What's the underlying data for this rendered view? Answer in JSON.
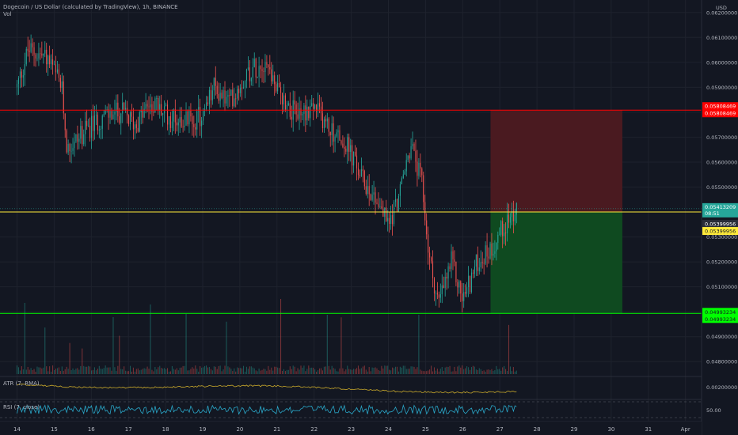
{
  "header": {
    "title": "Dogecoin / US Dollar (calculated by TradingView), 1h, BINANCE",
    "volume_label": "Vol"
  },
  "price_axis": {
    "currency": "USD",
    "ticks": [
      "0.06200000",
      "0.06100000",
      "0.06000000",
      "0.05900000",
      "0.05700000",
      "0.05600000",
      "0.05500000",
      "0.05300000",
      "0.05200000",
      "0.05100000",
      "0.04900000",
      "0.04800000"
    ]
  },
  "x_axis": {
    "ticks": [
      "14",
      "15",
      "16",
      "17",
      "18",
      "19",
      "20",
      "21",
      "22",
      "23",
      "24",
      "25",
      "26",
      "27",
      "28",
      "29",
      "30",
      "31",
      "Apr"
    ]
  },
  "levels": {
    "stop": {
      "label": "0.05808469",
      "label2": "0.05808469",
      "color": "#ff0000"
    },
    "current": {
      "label": "0.05413209",
      "countdown": "08:51",
      "color": "#26a69a"
    },
    "entry": {
      "label": "0.05399956",
      "label2": "0.05399956",
      "color": "#ffeb3b"
    },
    "target": {
      "label": "0.04993234",
      "label2": "0.04993234",
      "color": "#00ff00"
    }
  },
  "indicators": {
    "atr": {
      "label": "ATR (7, RMA)",
      "axis_label": "0.00200000",
      "color": "#c9a92b"
    },
    "rsi": {
      "label": "RSI (7, close)",
      "axis_label": "50.00",
      "color": "#2aa7c8"
    }
  },
  "colors": {
    "background": "#131722",
    "bull": "#26a69a",
    "bear": "#ef5350",
    "risk_zone": "#4a1a20",
    "reward_zone": "#0f4a20"
  },
  "chart_data": {
    "type": "candlestick",
    "symbol": "DOGE/USD",
    "interval": "1h",
    "y_unit": "USD",
    "ylim": [
      0.0475,
      0.0625
    ],
    "x_range": [
      "14",
      "Apr"
    ],
    "anchors": [
      {
        "t": 0.0,
        "p": 0.059
      },
      {
        "t": 0.3,
        "p": 0.0605
      },
      {
        "t": 0.8,
        "p": 0.0602
      },
      {
        "t": 1.2,
        "p": 0.059
      },
      {
        "t": 1.35,
        "p": 0.0565
      },
      {
        "t": 1.8,
        "p": 0.0572
      },
      {
        "t": 2.3,
        "p": 0.0578
      },
      {
        "t": 2.8,
        "p": 0.058
      },
      {
        "t": 3.2,
        "p": 0.0575
      },
      {
        "t": 3.6,
        "p": 0.0584
      },
      {
        "t": 4.1,
        "p": 0.0578
      },
      {
        "t": 4.6,
        "p": 0.0577
      },
      {
        "t": 5.0,
        "p": 0.0578
      },
      {
        "t": 5.3,
        "p": 0.059
      },
      {
        "t": 5.7,
        "p": 0.0584
      },
      {
        "t": 6.2,
        "p": 0.0596
      },
      {
        "t": 6.7,
        "p": 0.0601
      },
      {
        "t": 7.0,
        "p": 0.0589
      },
      {
        "t": 7.5,
        "p": 0.0579
      },
      {
        "t": 8.0,
        "p": 0.0582
      },
      {
        "t": 8.5,
        "p": 0.0572
      },
      {
        "t": 8.9,
        "p": 0.0566
      },
      {
        "t": 9.3,
        "p": 0.0553
      },
      {
        "t": 9.7,
        "p": 0.0545
      },
      {
        "t": 10.0,
        "p": 0.0535
      },
      {
        "t": 10.3,
        "p": 0.0547
      },
      {
        "t": 10.6,
        "p": 0.0567
      },
      {
        "t": 10.9,
        "p": 0.0551
      },
      {
        "t": 11.1,
        "p": 0.0521
      },
      {
        "t": 11.35,
        "p": 0.0503
      },
      {
        "t": 11.7,
        "p": 0.052
      },
      {
        "t": 12.0,
        "p": 0.0505
      },
      {
        "t": 12.4,
        "p": 0.052
      },
      {
        "t": 12.8,
        "p": 0.0526
      },
      {
        "t": 13.2,
        "p": 0.0537
      },
      {
        "t": 13.45,
        "p": 0.0541
      }
    ],
    "position": {
      "entry": 0.05399956,
      "stop": 0.05808469,
      "target": 0.04993234,
      "start": "26 18:00",
      "end": "30 08:00"
    }
  }
}
